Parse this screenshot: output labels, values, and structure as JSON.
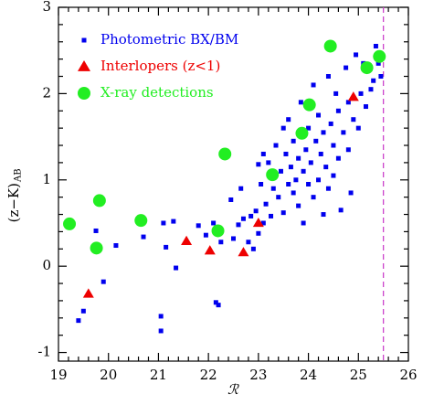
{
  "chart_data": {
    "type": "scatter",
    "xlabel": "ℛ",
    "ylabel": "(z−K)",
    "ylabel_sub": "AB",
    "xlim": [
      19,
      26
    ],
    "ylim": [
      -1.1,
      3
    ],
    "xticks": [
      19,
      20,
      21,
      22,
      23,
      24,
      25,
      26
    ],
    "yticks": [
      -1,
      0,
      1,
      2,
      3
    ],
    "vline": {
      "x": 25.5,
      "color": "#cc44cc"
    },
    "series": [
      {
        "name": "Photometric BX/BM",
        "color": "#0000ee",
        "marker": "square",
        "x": [
          19.4,
          19.5,
          19.75,
          19.7,
          19.9,
          20.15,
          20.7,
          21.05,
          21.05,
          21.1,
          21.15,
          21.3,
          21.35,
          21.8,
          21.95,
          22.1,
          22.15,
          22.2,
          22.25,
          22.45,
          22.5,
          22.6,
          22.65,
          22.7,
          22.8,
          22.9,
          22.95,
          23.0,
          23.05,
          23.1,
          23.1,
          23.15,
          23.2,
          23.25,
          23.3,
          23.35,
          23.4,
          23.45,
          23.5,
          23.5,
          23.55,
          23.6,
          23.6,
          23.65,
          23.7,
          23.7,
          23.75,
          23.8,
          23.8,
          23.85,
          23.9,
          23.9,
          23.95,
          24.0,
          24.0,
          24.05,
          24.1,
          24.1,
          24.15,
          24.2,
          24.2,
          24.25,
          24.3,
          24.3,
          24.35,
          24.4,
          24.4,
          24.45,
          24.5,
          24.5,
          24.55,
          24.6,
          24.6,
          24.65,
          24.7,
          24.75,
          24.8,
          24.8,
          24.9,
          24.95,
          25.0,
          25.05,
          25.1,
          25.15,
          25.25,
          25.3,
          25.35,
          25.4,
          25.45,
          24.85,
          23.0,
          22.85
        ],
        "values": [
          -0.63,
          -0.52,
          0.41,
          0.2,
          -0.18,
          0.24,
          0.34,
          -0.58,
          -0.75,
          0.5,
          0.22,
          0.52,
          -0.02,
          0.47,
          0.36,
          0.5,
          -0.42,
          -0.45,
          0.28,
          0.77,
          0.32,
          0.48,
          0.9,
          0.55,
          0.28,
          0.2,
          0.64,
          0.38,
          0.95,
          0.5,
          1.3,
          0.72,
          1.2,
          0.58,
          0.9,
          1.4,
          0.8,
          1.1,
          1.6,
          0.62,
          1.3,
          0.95,
          1.7,
          1.15,
          0.85,
          1.45,
          1.0,
          1.25,
          0.7,
          1.9,
          1.1,
          0.5,
          1.35,
          0.95,
          1.6,
          1.2,
          2.1,
          0.8,
          1.45,
          1.0,
          1.75,
          1.3,
          0.6,
          1.55,
          1.15,
          2.2,
          0.9,
          1.65,
          1.4,
          1.05,
          2.0,
          1.25,
          1.8,
          0.65,
          1.55,
          2.3,
          1.35,
          1.9,
          1.7,
          2.45,
          1.6,
          2.0,
          2.35,
          1.85,
          2.05,
          2.15,
          2.55,
          2.35,
          2.2,
          0.85,
          1.18,
          0.58
        ]
      },
      {
        "name": "Interlopers (z<1)",
        "color": "#ee0000",
        "marker": "triangle",
        "x": [
          19.6,
          21.56,
          22.03,
          22.7,
          23.0,
          24.9
        ],
        "values": [
          -0.32,
          0.29,
          0.18,
          0.16,
          0.5,
          1.96
        ]
      },
      {
        "name": "X-ray detections",
        "color": "#22ee22",
        "marker": "circle",
        "x": [
          19.22,
          19.82,
          19.76,
          20.65,
          22.33,
          22.19,
          23.28,
          23.87,
          24.02,
          24.44,
          25.17,
          25.42
        ],
        "values": [
          0.49,
          0.76,
          0.21,
          0.53,
          1.3,
          0.41,
          1.06,
          1.54,
          1.87,
          2.55,
          2.3,
          2.43
        ]
      }
    ]
  }
}
